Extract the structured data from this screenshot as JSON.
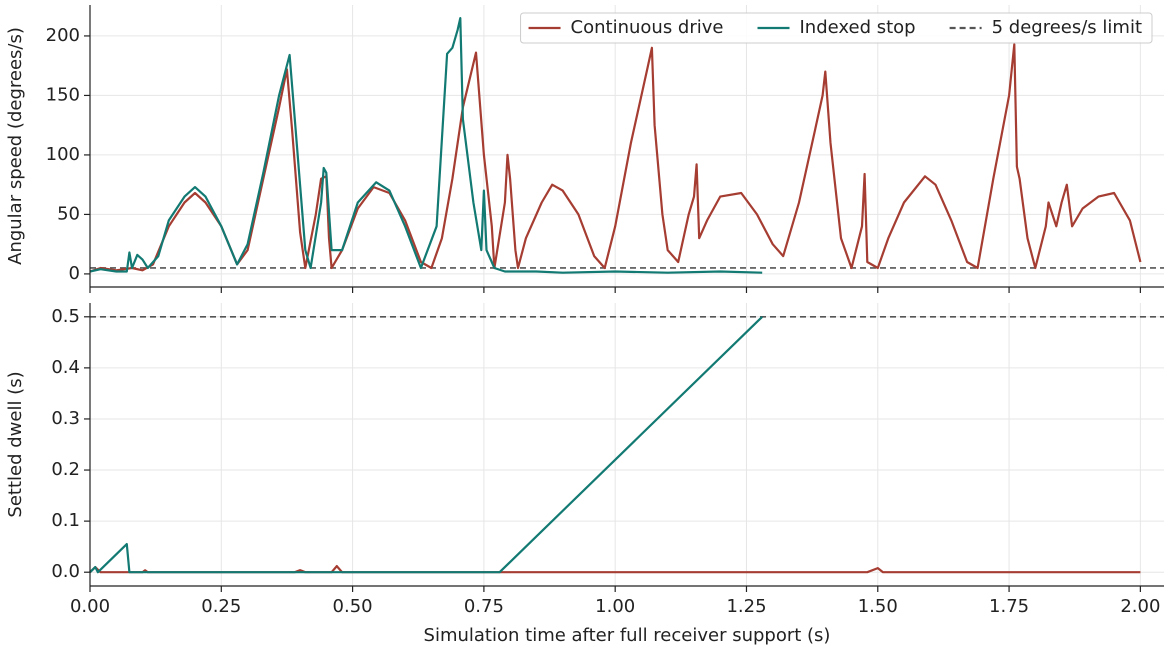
{
  "chart_data": [
    {
      "type": "line",
      "ylabel": "Angular speed (degrees/s)",
      "xlim": [
        0,
        2.045
      ],
      "ylim": [
        -11,
        226
      ],
      "xticks": [
        {
          "value": 0,
          "label": "0.00"
        },
        {
          "value": 0.25,
          "label": "0.25"
        },
        {
          "value": 0.5,
          "label": "0.50"
        },
        {
          "value": 0.75,
          "label": "0.75"
        },
        {
          "value": 1,
          "label": "1.00"
        },
        {
          "value": 1.25,
          "label": "1.25"
        },
        {
          "value": 1.5,
          "label": "1.50"
        },
        {
          "value": 1.75,
          "label": "1.75"
        },
        {
          "value": 2,
          "label": "2.00"
        }
      ],
      "show_xtick_labels": false,
      "yticks": [
        0,
        50,
        100,
        150,
        200
      ],
      "grid": true,
      "legend": "upper right",
      "hline": {
        "name": "5 degrees/s limit",
        "value": 5,
        "color": "#555555"
      },
      "series": [
        {
          "name": "Continuous drive",
          "color": "#a63d32",
          "x": [
            0,
            0.02,
            0.05,
            0.08,
            0.1,
            0.12,
            0.15,
            0.18,
            0.2,
            0.22,
            0.25,
            0.28,
            0.3,
            0.33,
            0.36,
            0.375,
            0.385,
            0.4,
            0.41,
            0.43,
            0.44,
            0.45,
            0.455,
            0.46,
            0.48,
            0.51,
            0.54,
            0.57,
            0.6,
            0.63,
            0.65,
            0.67,
            0.69,
            0.71,
            0.735,
            0.75,
            0.765,
            0.77,
            0.79,
            0.795,
            0.8,
            0.81,
            0.815,
            0.83,
            0.86,
            0.88,
            0.9,
            0.93,
            0.96,
            0.98,
            1.0,
            1.03,
            1.06,
            1.07,
            1.075,
            1.09,
            1.1,
            1.12,
            1.14,
            1.15,
            1.155,
            1.16,
            1.175,
            1.2,
            1.24,
            1.27,
            1.3,
            1.32,
            1.35,
            1.38,
            1.395,
            1.4,
            1.41,
            1.43,
            1.45,
            1.47,
            1.475,
            1.48,
            1.5,
            1.52,
            1.55,
            1.59,
            1.61,
            1.64,
            1.67,
            1.69,
            1.72,
            1.75,
            1.76,
            1.765,
            1.77,
            1.785,
            1.8,
            1.82,
            1.825,
            1.84,
            1.85,
            1.86,
            1.87,
            1.89,
            1.92,
            1.95,
            1.98,
            2.0
          ],
          "values": [
            2,
            5,
            3,
            5,
            3,
            8,
            40,
            60,
            68,
            60,
            40,
            8,
            20,
            80,
            140,
            172,
            120,
            35,
            5,
            50,
            80,
            82,
            30,
            5,
            20,
            55,
            73,
            68,
            45,
            10,
            5,
            30,
            80,
            140,
            186,
            100,
            40,
            5,
            60,
            100,
            80,
            20,
            5,
            30,
            60,
            75,
            70,
            50,
            15,
            5,
            40,
            110,
            170,
            190,
            125,
            50,
            20,
            10,
            50,
            65,
            92,
            30,
            45,
            65,
            68,
            50,
            25,
            15,
            60,
            120,
            150,
            170,
            110,
            30,
            5,
            40,
            84,
            10,
            5,
            30,
            60,
            82,
            75,
            45,
            10,
            5,
            80,
            150,
            193,
            90,
            80,
            30,
            5,
            40,
            60,
            40,
            60,
            75,
            40,
            55,
            65,
            68,
            45,
            10
          ]
        },
        {
          "name": "Indexed stop",
          "color": "#127a73",
          "x": [
            0,
            0.02,
            0.05,
            0.07,
            0.075,
            0.08,
            0.09,
            0.1,
            0.11,
            0.13,
            0.15,
            0.18,
            0.2,
            0.22,
            0.25,
            0.28,
            0.3,
            0.33,
            0.36,
            0.38,
            0.39,
            0.41,
            0.42,
            0.44,
            0.445,
            0.45,
            0.46,
            0.48,
            0.51,
            0.545,
            0.57,
            0.6,
            0.63,
            0.66,
            0.68,
            0.69,
            0.7,
            0.705,
            0.71,
            0.73,
            0.745,
            0.75,
            0.755,
            0.77,
            0.79,
            0.85,
            0.9,
            1.0,
            1.1,
            1.2,
            1.28
          ],
          "values": [
            2,
            4,
            2,
            2,
            18,
            5,
            16,
            12,
            5,
            15,
            45,
            65,
            73,
            65,
            40,
            8,
            25,
            85,
            150,
            184,
            130,
            20,
            5,
            60,
            89,
            85,
            20,
            20,
            60,
            77,
            70,
            40,
            5,
            40,
            185,
            190,
            205,
            215,
            130,
            60,
            20,
            70,
            20,
            5,
            2,
            2,
            1,
            2,
            1,
            2,
            1
          ]
        }
      ]
    },
    {
      "type": "line",
      "ylabel": "Settled dwell (s)",
      "xlabel": "Simulation time after full receiver support (s)",
      "xlim": [
        0,
        2.045
      ],
      "ylim": [
        -0.027,
        0.527
      ],
      "xticks": [
        {
          "value": 0,
          "label": "0.00"
        },
        {
          "value": 0.25,
          "label": "0.25"
        },
        {
          "value": 0.5,
          "label": "0.50"
        },
        {
          "value": 0.75,
          "label": "0.75"
        },
        {
          "value": 1,
          "label": "1.00"
        },
        {
          "value": 1.25,
          "label": "1.25"
        },
        {
          "value": 1.5,
          "label": "1.50"
        },
        {
          "value": 1.75,
          "label": "1.75"
        },
        {
          "value": 2,
          "label": "2.00"
        }
      ],
      "show_xtick_labels": true,
      "yticks": [
        {
          "value": 0,
          "label": "0.0"
        },
        {
          "value": 0.1,
          "label": "0.1"
        },
        {
          "value": 0.2,
          "label": "0.2"
        },
        {
          "value": 0.3,
          "label": "0.3"
        },
        {
          "value": 0.4,
          "label": "0.4"
        },
        {
          "value": 0.5,
          "label": "0.5"
        }
      ],
      "grid": true,
      "hline": {
        "value": 0.5,
        "color": "#555555"
      },
      "series": [
        {
          "color": "#a63d32",
          "x": [
            0,
            0.01,
            0.02,
            0.1,
            0.105,
            0.11,
            0.39,
            0.4,
            0.41,
            0.46,
            0.47,
            0.48,
            1.48,
            1.5,
            1.51,
            2.0
          ],
          "values": [
            0,
            0.01,
            0,
            0,
            0.004,
            0,
            0,
            0.004,
            0,
            0,
            0.012,
            0,
            0,
            0.008,
            0,
            0
          ]
        },
        {
          "color": "#127a73",
          "x": [
            0,
            0.01,
            0.015,
            0.07,
            0.075,
            0.78,
            1.28
          ],
          "values": [
            0,
            0.01,
            0,
            0.055,
            0,
            0,
            0.5
          ]
        }
      ]
    }
  ]
}
